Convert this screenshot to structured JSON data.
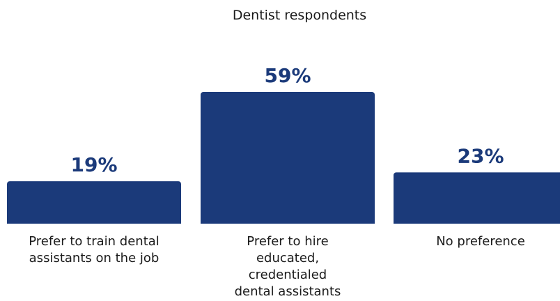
{
  "chart_data": {
    "type": "bar",
    "title": "Dentist respondents",
    "categories": [
      [
        "Prefer to train dental",
        "assistants on the job"
      ],
      [
        "Prefer to hire",
        "educated,",
        "credentialed",
        "dental assistants"
      ],
      [
        "No preference"
      ]
    ],
    "values": [
      19,
      59,
      23
    ],
    "value_labels": [
      "19%",
      "59%",
      "23%"
    ],
    "ylim": [
      0,
      59
    ],
    "grid": false,
    "bar_color": "#1b3a7a"
  }
}
